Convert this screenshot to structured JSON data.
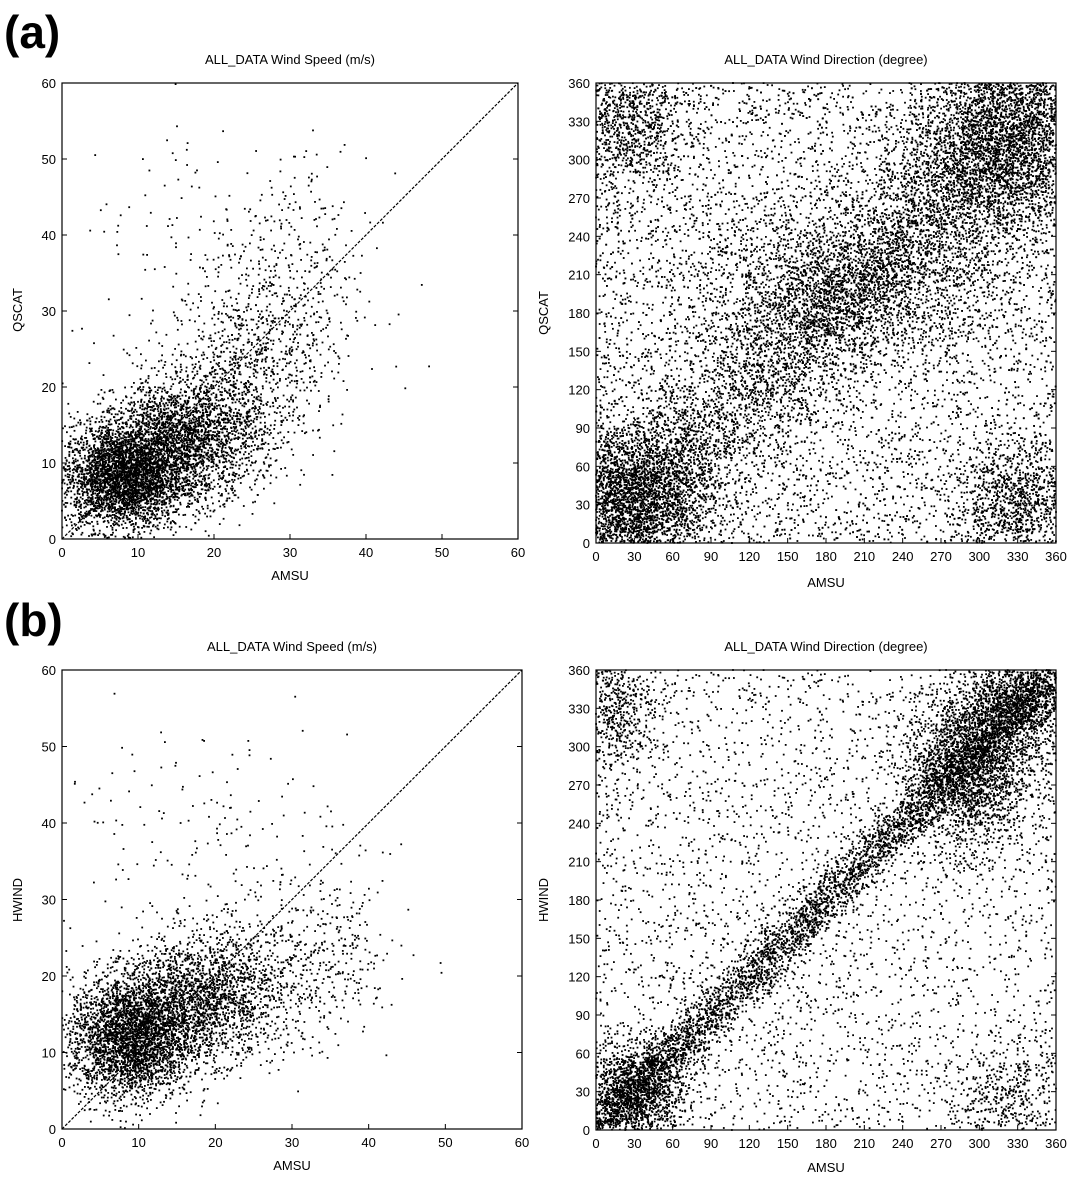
{
  "panels": [
    {
      "label": "(a)"
    },
    {
      "label": "(b)"
    }
  ],
  "chart_data": [
    {
      "type": "scatter",
      "panel": "(a)",
      "title": "ALL_DATA Wind Speed (m/s)",
      "xlabel": "AMSU",
      "ylabel": "QSCAT",
      "xlim": [
        0,
        60
      ],
      "ylim": [
        0,
        60
      ],
      "xticks": [
        0,
        10,
        20,
        30,
        40,
        50,
        60
      ],
      "yticks": [
        0,
        10,
        20,
        30,
        40,
        50,
        60
      ],
      "reference_line": "y = x",
      "point_color": "#000000",
      "clusters": [
        {
          "cx": 8,
          "cy": 8,
          "sx": 4,
          "sy": 3.5,
          "n": 3400
        },
        {
          "cx": 16,
          "cy": 13,
          "sx": 5,
          "sy": 4,
          "n": 2400
        },
        {
          "cx": 24,
          "cy": 22,
          "sx": 5,
          "sy": 6,
          "n": 800
        },
        {
          "cx": 30,
          "cy": 32,
          "sx": 5,
          "sy": 9,
          "n": 400
        },
        {
          "cx": 20,
          "cy": 40,
          "sx": 10,
          "sy": 8,
          "n": 120
        }
      ]
    },
    {
      "type": "scatter",
      "panel": "(a)",
      "title": "ALL_DATA Wind Direction (degree)",
      "xlabel": "AMSU",
      "ylabel": "QSCAT",
      "xlim": [
        0,
        360
      ],
      "ylim": [
        0,
        360
      ],
      "xticks": [
        0,
        30,
        60,
        90,
        120,
        150,
        180,
        210,
        240,
        270,
        300,
        330,
        360
      ],
      "yticks": [
        0,
        30,
        60,
        90,
        120,
        150,
        180,
        210,
        240,
        270,
        300,
        330,
        360
      ],
      "point_color": "#000000",
      "diagonal_spread": 32,
      "clusters": [
        {
          "cx": 30,
          "cy": 35,
          "sx": 30,
          "sy": 30,
          "n": 2600
        },
        {
          "cx": 320,
          "cy": 310,
          "sx": 40,
          "sy": 40,
          "n": 3200
        },
        {
          "cx": 20,
          "cy": 330,
          "sx": 25,
          "sy": 30,
          "n": 1000
        },
        {
          "cx": 330,
          "cy": 30,
          "sx": 25,
          "sy": 25,
          "n": 1000
        },
        {
          "cx": 200,
          "cy": 200,
          "sx": 60,
          "sy": 30,
          "n": 2000
        }
      ],
      "uniform_n": 6500,
      "diagonal_n": 4500
    },
    {
      "type": "scatter",
      "panel": "(b)",
      "title": "ALL_DATA Wind Speed (m/s)",
      "xlabel": "AMSU",
      "ylabel": "HWIND",
      "xlim": [
        0,
        60
      ],
      "ylim": [
        0,
        60
      ],
      "xticks": [
        0,
        10,
        20,
        30,
        40,
        50,
        60
      ],
      "yticks": [
        0,
        10,
        20,
        30,
        40,
        50,
        60
      ],
      "reference_line": "y = x",
      "point_color": "#000000",
      "clusters": [
        {
          "cx": 9,
          "cy": 12,
          "sx": 4,
          "sy": 4,
          "n": 3200
        },
        {
          "cx": 18,
          "cy": 17,
          "sx": 5,
          "sy": 4,
          "n": 1800
        },
        {
          "cx": 28,
          "cy": 20,
          "sx": 6,
          "sy": 5,
          "n": 500
        },
        {
          "cx": 36,
          "cy": 24,
          "sx": 4,
          "sy": 5,
          "n": 150
        },
        {
          "cx": 18,
          "cy": 38,
          "sx": 10,
          "sy": 8,
          "n": 180
        }
      ]
    },
    {
      "type": "scatter",
      "panel": "(b)",
      "title": "ALL_DATA Wind Direction (degree)",
      "xlabel": "AMSU",
      "ylabel": "HWIND",
      "xlim": [
        0,
        360
      ],
      "ylim": [
        0,
        360
      ],
      "xticks": [
        0,
        30,
        60,
        90,
        120,
        150,
        180,
        210,
        240,
        270,
        300,
        330,
        360
      ],
      "yticks": [
        0,
        30,
        60,
        90,
        120,
        150,
        180,
        210,
        240,
        270,
        300,
        330,
        360
      ],
      "point_color": "#000000",
      "diagonal_spread": 12,
      "clusters": [
        {
          "cx": 30,
          "cy": 30,
          "sx": 20,
          "sy": 20,
          "n": 1400
        },
        {
          "cx": 290,
          "cy": 280,
          "sx": 25,
          "sy": 30,
          "n": 2200
        },
        {
          "cx": 330,
          "cy": 330,
          "sx": 25,
          "sy": 20,
          "n": 1400
        },
        {
          "cx": 15,
          "cy": 330,
          "sx": 15,
          "sy": 25,
          "n": 500
        },
        {
          "cx": 320,
          "cy": 25,
          "sx": 25,
          "sy": 20,
          "n": 400
        }
      ],
      "uniform_n": 3200,
      "diagonal_n": 4200
    }
  ]
}
